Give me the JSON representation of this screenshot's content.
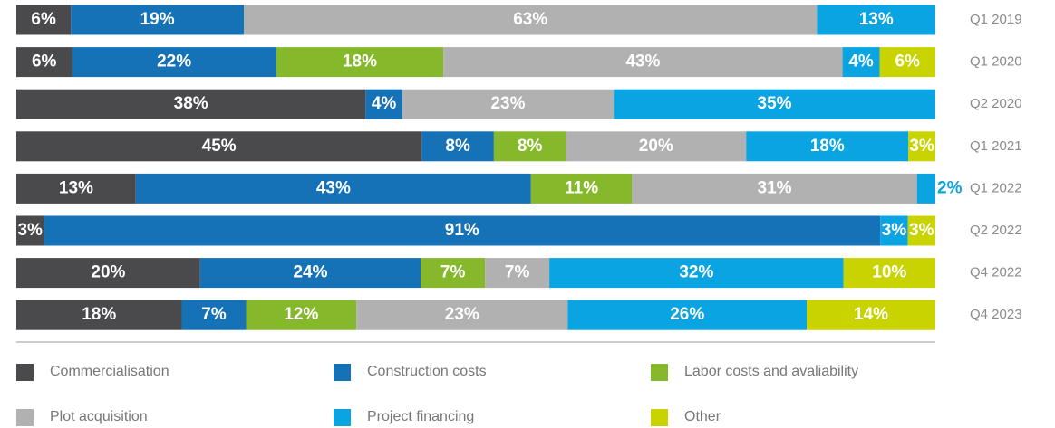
{
  "chart_data": {
    "type": "bar",
    "orientation": "horizontal",
    "stacked": "percent",
    "categories": [
      "Q1 2019",
      "Q1 2020",
      "Q2 2020",
      "Q1 2021",
      "Q1 2022",
      "Q2 2022",
      "Q4 2022",
      "Q4 2023"
    ],
    "series": [
      {
        "name": "Commercialisation",
        "color": "#4a4a4c",
        "values": [
          6,
          6,
          38,
          45,
          13,
          3,
          20,
          18
        ],
        "value_labels": [
          "6%",
          "6%",
          "38%",
          "45%",
          "13%",
          "3%",
          "20%",
          "18%"
        ]
      },
      {
        "name": "Construction costs",
        "color": "#1572b6",
        "values": [
          19,
          22,
          4,
          8,
          43,
          91,
          24,
          7
        ],
        "value_labels": [
          "19%",
          "22%",
          "4%",
          "8%",
          "43%",
          "91%",
          "24%",
          "7%"
        ]
      },
      {
        "name": "Labor costs and avaliability",
        "color": "#86b82c",
        "values": [
          null,
          18,
          null,
          8,
          11,
          null,
          7,
          12
        ],
        "value_labels": [
          null,
          "18%",
          null,
          "8%",
          "11%",
          null,
          "7%",
          "12%"
        ]
      },
      {
        "name": "Plot acquisition",
        "color": "#b1b1b1",
        "values": [
          63,
          43,
          23,
          20,
          31,
          null,
          7,
          23
        ],
        "value_labels": [
          "63%",
          "43%",
          "23%",
          "20%",
          "31%",
          null,
          "7%",
          "23%"
        ]
      },
      {
        "name": "Project financing",
        "color": "#0ba4e2",
        "values": [
          13,
          4,
          35,
          18,
          2,
          3,
          32,
          26
        ],
        "value_labels": [
          "13%",
          "4%",
          "35%",
          "18%",
          "2%",
          "3%",
          "32%",
          "26%"
        ]
      },
      {
        "name": "Other",
        "color": "#c8d300",
        "values": [
          null,
          6,
          null,
          3,
          null,
          3,
          10,
          14
        ],
        "value_labels": [
          null,
          "6%",
          null,
          "3%",
          null,
          "3%",
          "10%",
          "14%"
        ]
      }
    ]
  }
}
